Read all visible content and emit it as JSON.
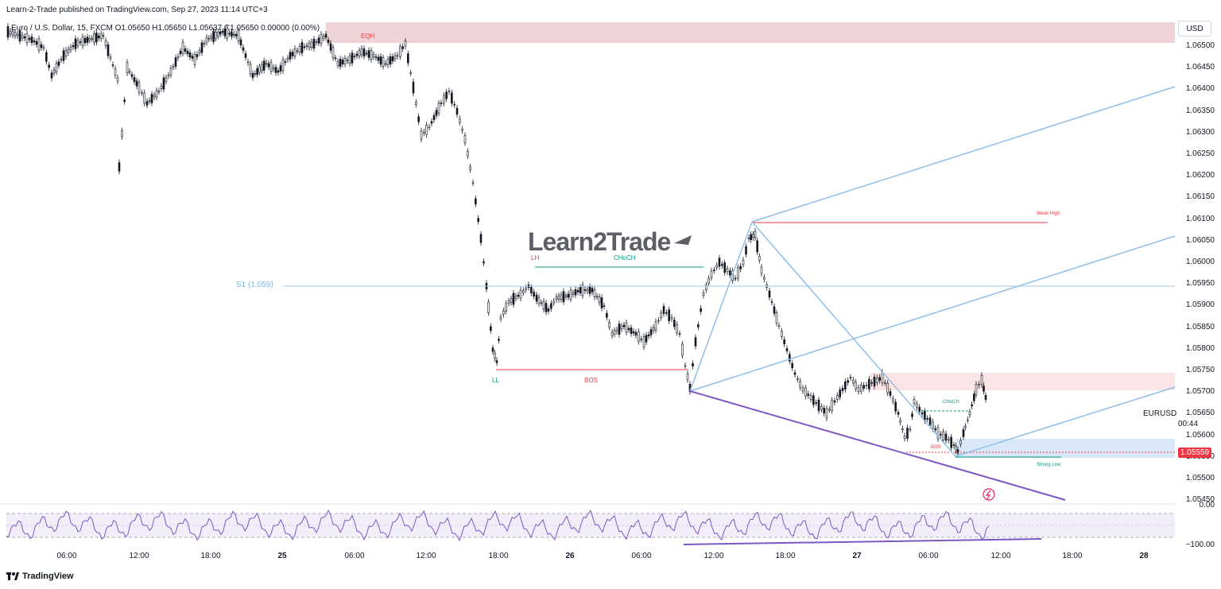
{
  "publisher_line": "Learn-2-Trade published on TradingView.com, Sep 27, 2023 11:14 UTC+3",
  "legend": "Euro / U.S. Dollar, 15, FXCM  O1.05650  H1.05650  L1.05637  C1.05650  0.00000 (0.00%)",
  "currency_button": "USD",
  "price_axis": [
    "1.06500",
    "1.06450",
    "1.06400",
    "1.06350",
    "1.06300",
    "1.06250",
    "1.06200",
    "1.06150",
    "1.06100",
    "1.06050",
    "1.06000",
    "1.05950",
    "1.05900",
    "1.05850",
    "1.05800",
    "1.05750",
    "1.05700",
    "1.05650",
    "1.05600",
    "1.05550",
    "1.05500",
    "1.05450"
  ],
  "current_price": "1.05559",
  "symbol": "EURUSD",
  "countdown": "00:44",
  "time_axis": [
    {
      "label": "06:00",
      "bold": false
    },
    {
      "label": "12:00",
      "bold": false
    },
    {
      "label": "18:00",
      "bold": false
    },
    {
      "label": "25",
      "bold": true
    },
    {
      "label": "06:00",
      "bold": false
    },
    {
      "label": "12:00",
      "bold": false
    },
    {
      "label": "18:00",
      "bold": false
    },
    {
      "label": "26",
      "bold": true
    },
    {
      "label": "06:00",
      "bold": false
    },
    {
      "label": "12:00",
      "bold": false
    },
    {
      "label": "18:00",
      "bold": false
    },
    {
      "label": "27",
      "bold": true
    },
    {
      "label": "06:00",
      "bold": false
    },
    {
      "label": "12:00",
      "bold": false
    },
    {
      "label": "18:00",
      "bold": false
    },
    {
      "label": "28",
      "bold": true
    }
  ],
  "oscillator_axis": [
    "0.00",
    "−100.00"
  ],
  "annotations": {
    "eqh": "EQH",
    "lh": "LH",
    "choch_top": "CHoCH",
    "ll": "LL",
    "bos_mid": "BOS",
    "weak_high": "Weak High",
    "choch_small": "CHoCH",
    "bos_small": "BOS",
    "strong_low": "Strong Low",
    "s1": "S1 (1.059)"
  },
  "brand": "Learn2Trade",
  "footer": "TradingView",
  "colors": {
    "up": "#131722",
    "down": "#131722",
    "supply_zone": "#e8c6c8",
    "demand_zone": "#cfe2f8",
    "trend_blue": "#8fbfe8",
    "purple": "#7e57c2",
    "red": "#f23645",
    "green": "#089981"
  }
}
